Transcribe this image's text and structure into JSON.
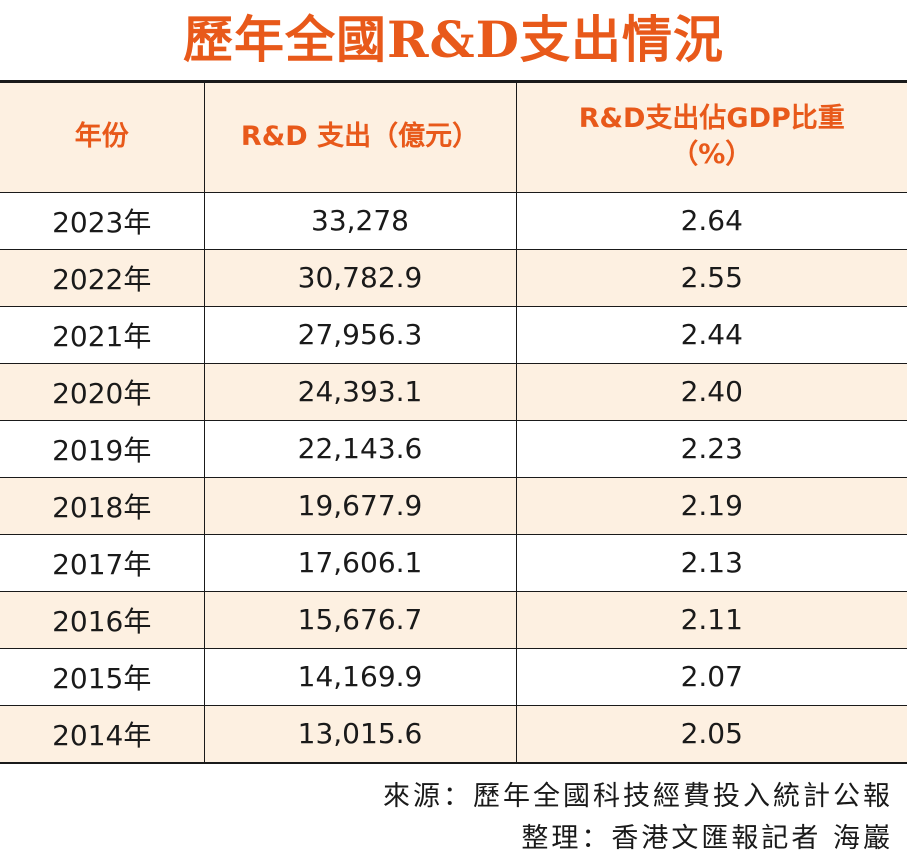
{
  "title": "歷年全國R&D支出情況",
  "table": {
    "headers": [
      "年份",
      "R&D 支出（億元）",
      "R&D支出佔GDP比重",
      "（%）"
    ],
    "rows": [
      {
        "year": "2023年",
        "spend": "33,278",
        "ratio": "2.64"
      },
      {
        "year": "2022年",
        "spend": "30,782.9",
        "ratio": "2.55"
      },
      {
        "year": "2021年",
        "spend": "27,956.3",
        "ratio": "2.44"
      },
      {
        "year": "2020年",
        "spend": "24,393.1",
        "ratio": "2.40"
      },
      {
        "year": "2019年",
        "spend": "22,143.6",
        "ratio": "2.23"
      },
      {
        "year": "2018年",
        "spend": "19,677.9",
        "ratio": "2.19"
      },
      {
        "year": "2017年",
        "spend": "17,606.1",
        "ratio": "2.13"
      },
      {
        "year": "2016年",
        "spend": "15,676.7",
        "ratio": "2.11"
      },
      {
        "year": "2015年",
        "spend": "14,169.9",
        "ratio": "2.07"
      },
      {
        "year": "2014年",
        "spend": "13,015.6",
        "ratio": "2.05"
      }
    ]
  },
  "footer": {
    "source": "來源：歷年全國科技經費投入統計公報",
    "credit": "整理：香港文匯報記者 海巖"
  },
  "colors": {
    "accent": "#e8591a",
    "band": "#fdf0e1",
    "text": "#1a1a1a"
  }
}
